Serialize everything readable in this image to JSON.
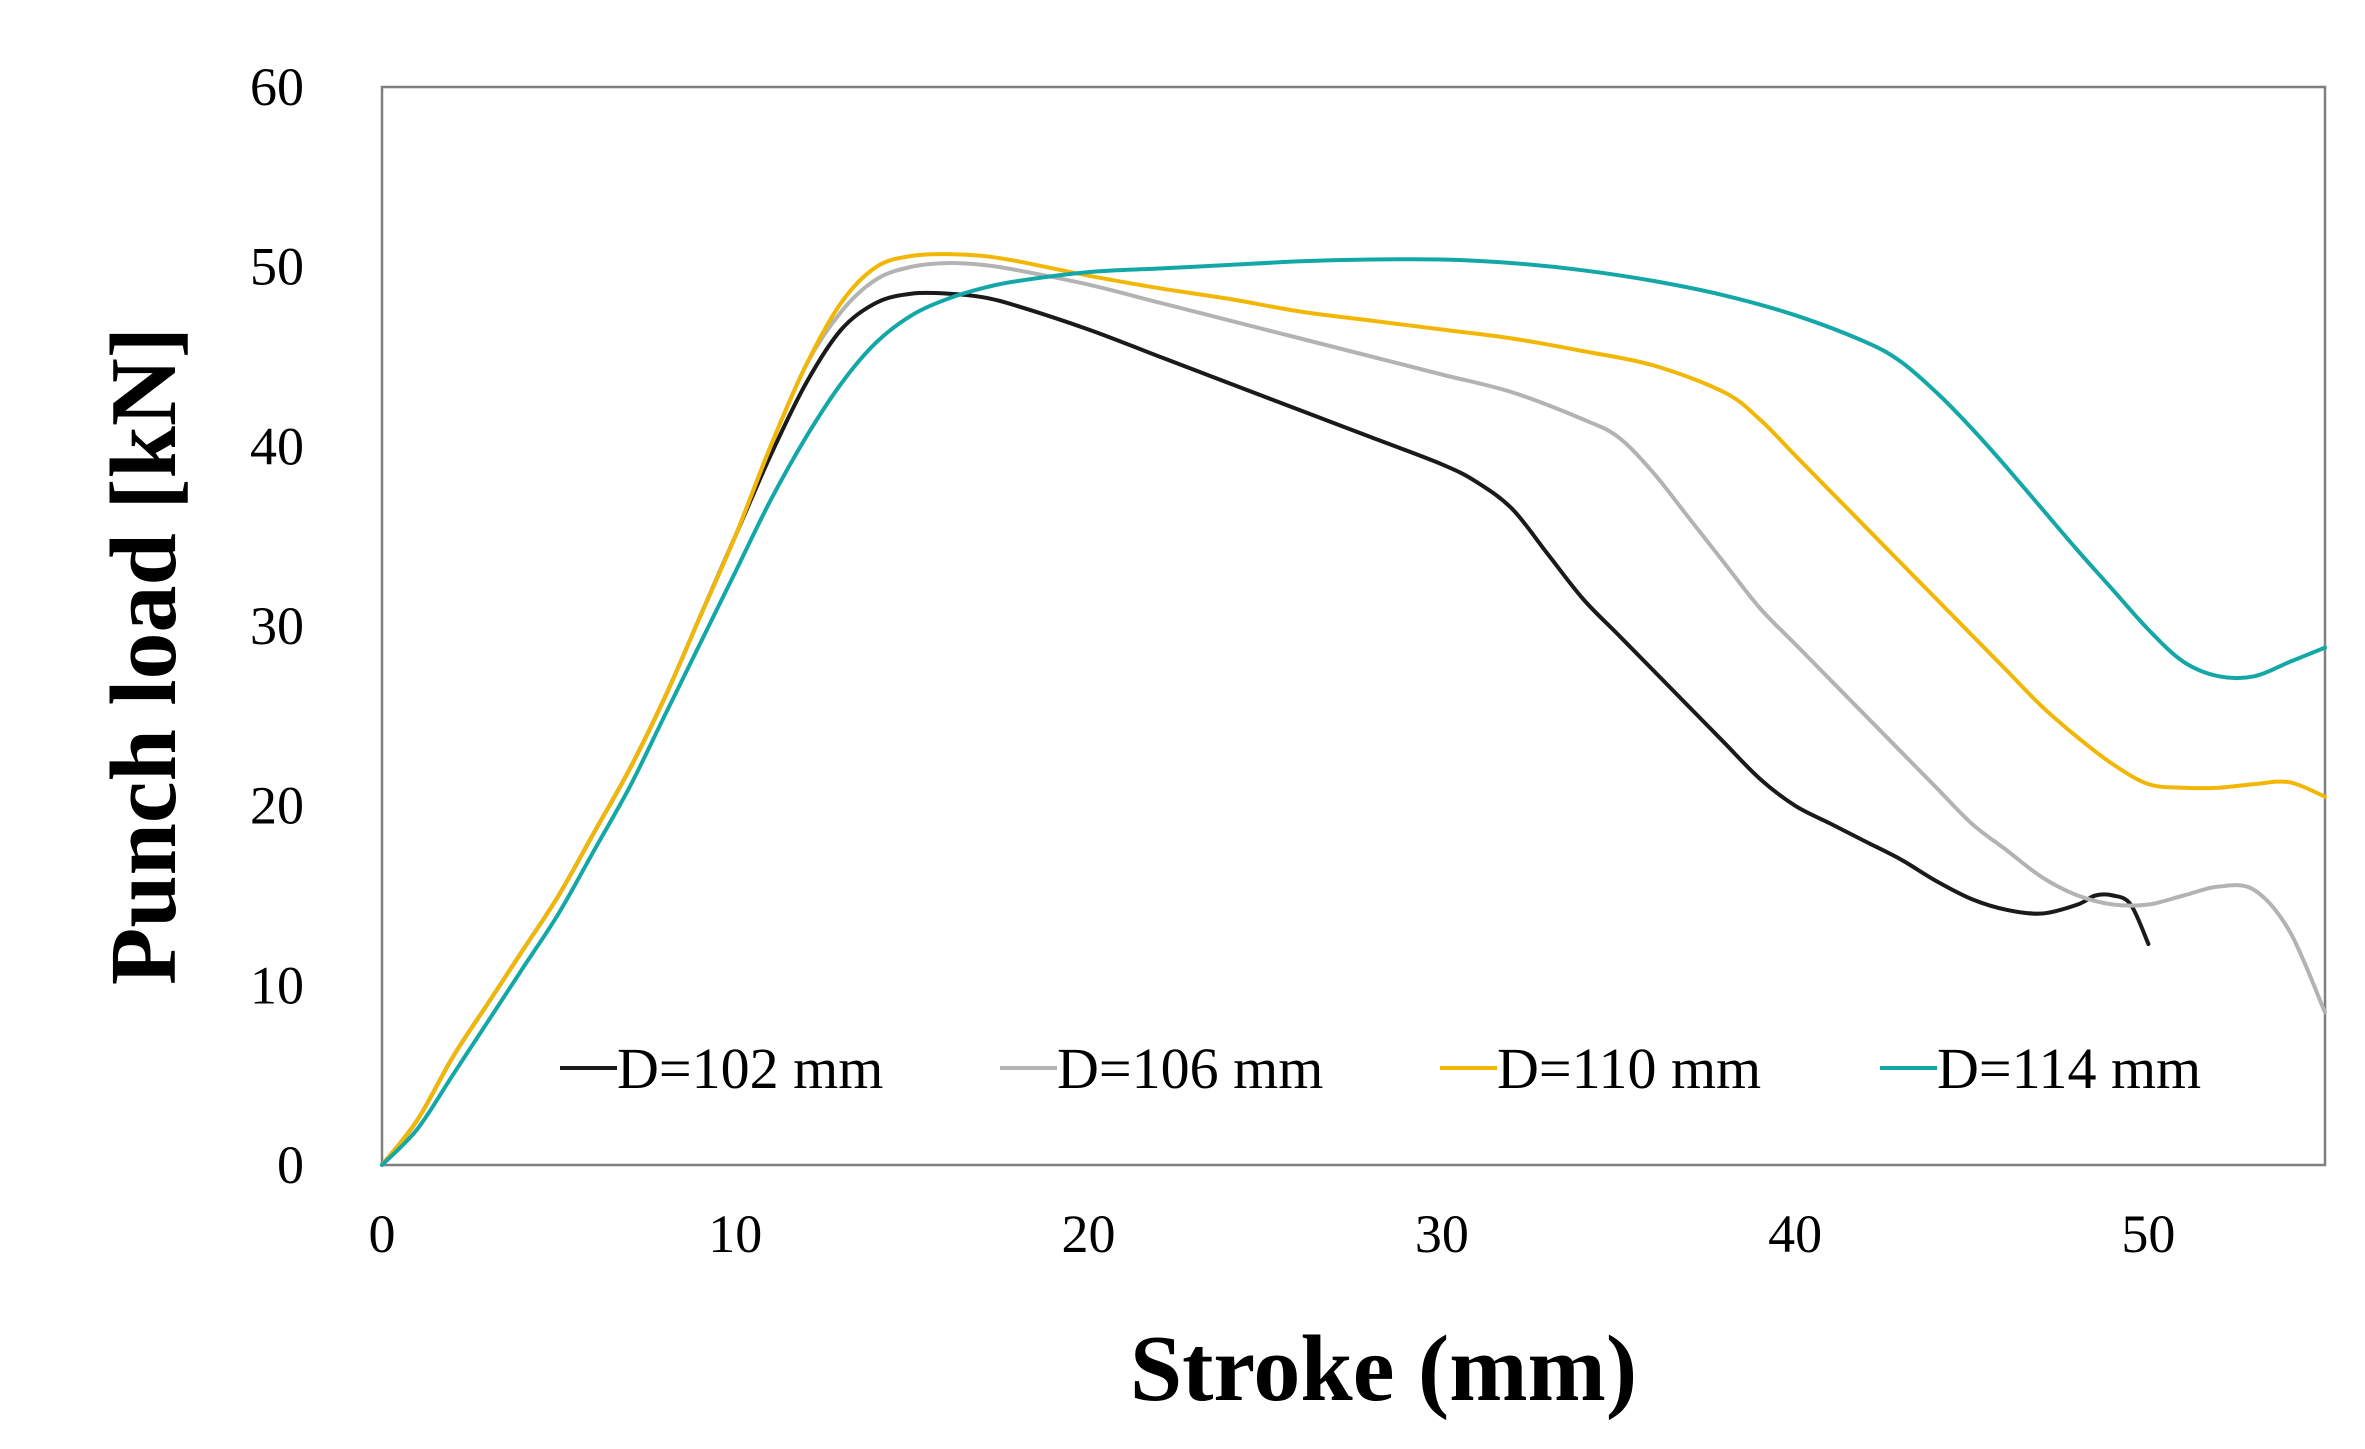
{
  "chart_data": {
    "type": "line",
    "title": "",
    "xlabel": "Stroke (mm)",
    "ylabel": "Punch load [kN]",
    "xlim": [
      0,
      55
    ],
    "ylim": [
      0,
      60
    ],
    "xticks": [
      0,
      10,
      20,
      30,
      40,
      50
    ],
    "yticks": [
      0,
      10,
      20,
      30,
      40,
      50,
      60
    ],
    "grid": false,
    "legend_position": "bottom-right",
    "series": [
      {
        "name": "D=102 mm",
        "color": "#1a1a1a",
        "points": [
          [
            0,
            0
          ],
          [
            1,
            2.5
          ],
          [
            2,
            6
          ],
          [
            3,
            9
          ],
          [
            4,
            12
          ],
          [
            5,
            15
          ],
          [
            6,
            18.5
          ],
          [
            7,
            22
          ],
          [
            8,
            26
          ],
          [
            9,
            30.5
          ],
          [
            10,
            35
          ],
          [
            11,
            39.5
          ],
          [
            12,
            43.5
          ],
          [
            13,
            46.5
          ],
          [
            14,
            48
          ],
          [
            15,
            48.5
          ],
          [
            16,
            48.5
          ],
          [
            17,
            48.3
          ],
          [
            18,
            47.8
          ],
          [
            20,
            46.5
          ],
          [
            22,
            45
          ],
          [
            24,
            43.5
          ],
          [
            26,
            42
          ],
          [
            28,
            40.5
          ],
          [
            30,
            39
          ],
          [
            31,
            38
          ],
          [
            32,
            36.5
          ],
          [
            33,
            34
          ],
          [
            34,
            31.5
          ],
          [
            35,
            29.5
          ],
          [
            36,
            27.5
          ],
          [
            37,
            25.5
          ],
          [
            38,
            23.5
          ],
          [
            39,
            21.5
          ],
          [
            40,
            20
          ],
          [
            41,
            19
          ],
          [
            42,
            18
          ],
          [
            43,
            17
          ],
          [
            44,
            15.8
          ],
          [
            45,
            14.8
          ],
          [
            46,
            14.2
          ],
          [
            47,
            14
          ],
          [
            48,
            14.5
          ],
          [
            48.5,
            15
          ],
          [
            49,
            15
          ],
          [
            49.5,
            14.5
          ],
          [
            50,
            12.3
          ]
        ]
      },
      {
        "name": "D=106 mm",
        "color": "#b3b3b3",
        "points": [
          [
            0,
            0
          ],
          [
            1,
            2.5
          ],
          [
            2,
            6
          ],
          [
            3,
            9
          ],
          [
            4,
            12
          ],
          [
            5,
            15
          ],
          [
            6,
            18.5
          ],
          [
            7,
            22
          ],
          [
            8,
            26
          ],
          [
            9,
            30.5
          ],
          [
            10,
            35
          ],
          [
            11,
            40
          ],
          [
            12,
            44.5
          ],
          [
            13,
            47.5
          ],
          [
            14,
            49.3
          ],
          [
            15,
            50
          ],
          [
            16,
            50.2
          ],
          [
            17,
            50.1
          ],
          [
            18,
            49.8
          ],
          [
            20,
            49
          ],
          [
            22,
            48
          ],
          [
            24,
            47
          ],
          [
            26,
            46
          ],
          [
            28,
            45
          ],
          [
            30,
            44
          ],
          [
            32,
            43
          ],
          [
            34,
            41.5
          ],
          [
            35,
            40.5
          ],
          [
            36,
            38.5
          ],
          [
            37,
            36
          ],
          [
            38,
            33.5
          ],
          [
            39,
            31
          ],
          [
            40,
            29
          ],
          [
            41,
            27
          ],
          [
            42,
            25
          ],
          [
            43,
            23
          ],
          [
            44,
            21
          ],
          [
            45,
            19
          ],
          [
            46,
            17.5
          ],
          [
            47,
            16
          ],
          [
            48,
            15
          ],
          [
            49,
            14.5
          ],
          [
            50,
            14.5
          ],
          [
            51,
            15
          ],
          [
            52,
            15.5
          ],
          [
            53,
            15.3
          ],
          [
            54,
            13
          ],
          [
            55,
            8.5
          ]
        ]
      },
      {
        "name": "D=110 mm",
        "color": "#f2b705",
        "points": [
          [
            0,
            0
          ],
          [
            1,
            2.5
          ],
          [
            2,
            6
          ],
          [
            3,
            9
          ],
          [
            4,
            12
          ],
          [
            5,
            15
          ],
          [
            6,
            18.5
          ],
          [
            7,
            22
          ],
          [
            8,
            26
          ],
          [
            9,
            30.5
          ],
          [
            10,
            35
          ],
          [
            11,
            40
          ],
          [
            12,
            44.5
          ],
          [
            13,
            48
          ],
          [
            14,
            50
          ],
          [
            15,
            50.6
          ],
          [
            16,
            50.7
          ],
          [
            17,
            50.6
          ],
          [
            18,
            50.3
          ],
          [
            20,
            49.5
          ],
          [
            22,
            48.8
          ],
          [
            24,
            48.2
          ],
          [
            26,
            47.5
          ],
          [
            28,
            47
          ],
          [
            30,
            46.5
          ],
          [
            32,
            46
          ],
          [
            34,
            45.3
          ],
          [
            36,
            44.5
          ],
          [
            38,
            43
          ],
          [
            39,
            41.5
          ],
          [
            40,
            39.5
          ],
          [
            41,
            37.5
          ],
          [
            42,
            35.5
          ],
          [
            43,
            33.5
          ],
          [
            44,
            31.5
          ],
          [
            45,
            29.5
          ],
          [
            46,
            27.5
          ],
          [
            47,
            25.5
          ],
          [
            48,
            23.8
          ],
          [
            49,
            22.3
          ],
          [
            50,
            21.2
          ],
          [
            51,
            21
          ],
          [
            52,
            21
          ],
          [
            53,
            21.2
          ],
          [
            54,
            21.3
          ],
          [
            55,
            20.5
          ]
        ]
      },
      {
        "name": "D=114 mm",
        "color": "#14a7a7",
        "points": [
          [
            0,
            0
          ],
          [
            1,
            2
          ],
          [
            2,
            5
          ],
          [
            3,
            8
          ],
          [
            4,
            11
          ],
          [
            5,
            14
          ],
          [
            6,
            17.5
          ],
          [
            7,
            21
          ],
          [
            8,
            25
          ],
          [
            9,
            29
          ],
          [
            10,
            33
          ],
          [
            11,
            37
          ],
          [
            12,
            40.5
          ],
          [
            13,
            43.5
          ],
          [
            14,
            45.8
          ],
          [
            15,
            47.3
          ],
          [
            16,
            48.2
          ],
          [
            17,
            48.8
          ],
          [
            18,
            49.2
          ],
          [
            20,
            49.7
          ],
          [
            22,
            49.9
          ],
          [
            24,
            50.1
          ],
          [
            26,
            50.3
          ],
          [
            28,
            50.4
          ],
          [
            30,
            50.4
          ],
          [
            32,
            50.2
          ],
          [
            34,
            49.8
          ],
          [
            36,
            49.2
          ],
          [
            38,
            48.4
          ],
          [
            40,
            47.3
          ],
          [
            42,
            45.8
          ],
          [
            43,
            44.7
          ],
          [
            44,
            43
          ],
          [
            45,
            41
          ],
          [
            46,
            38.8
          ],
          [
            47,
            36.5
          ],
          [
            48,
            34.2
          ],
          [
            49,
            32
          ],
          [
            50,
            29.8
          ],
          [
            51,
            28
          ],
          [
            52,
            27.2
          ],
          [
            53,
            27.2
          ],
          [
            54,
            28
          ],
          [
            55,
            28.8
          ]
        ]
      }
    ]
  }
}
